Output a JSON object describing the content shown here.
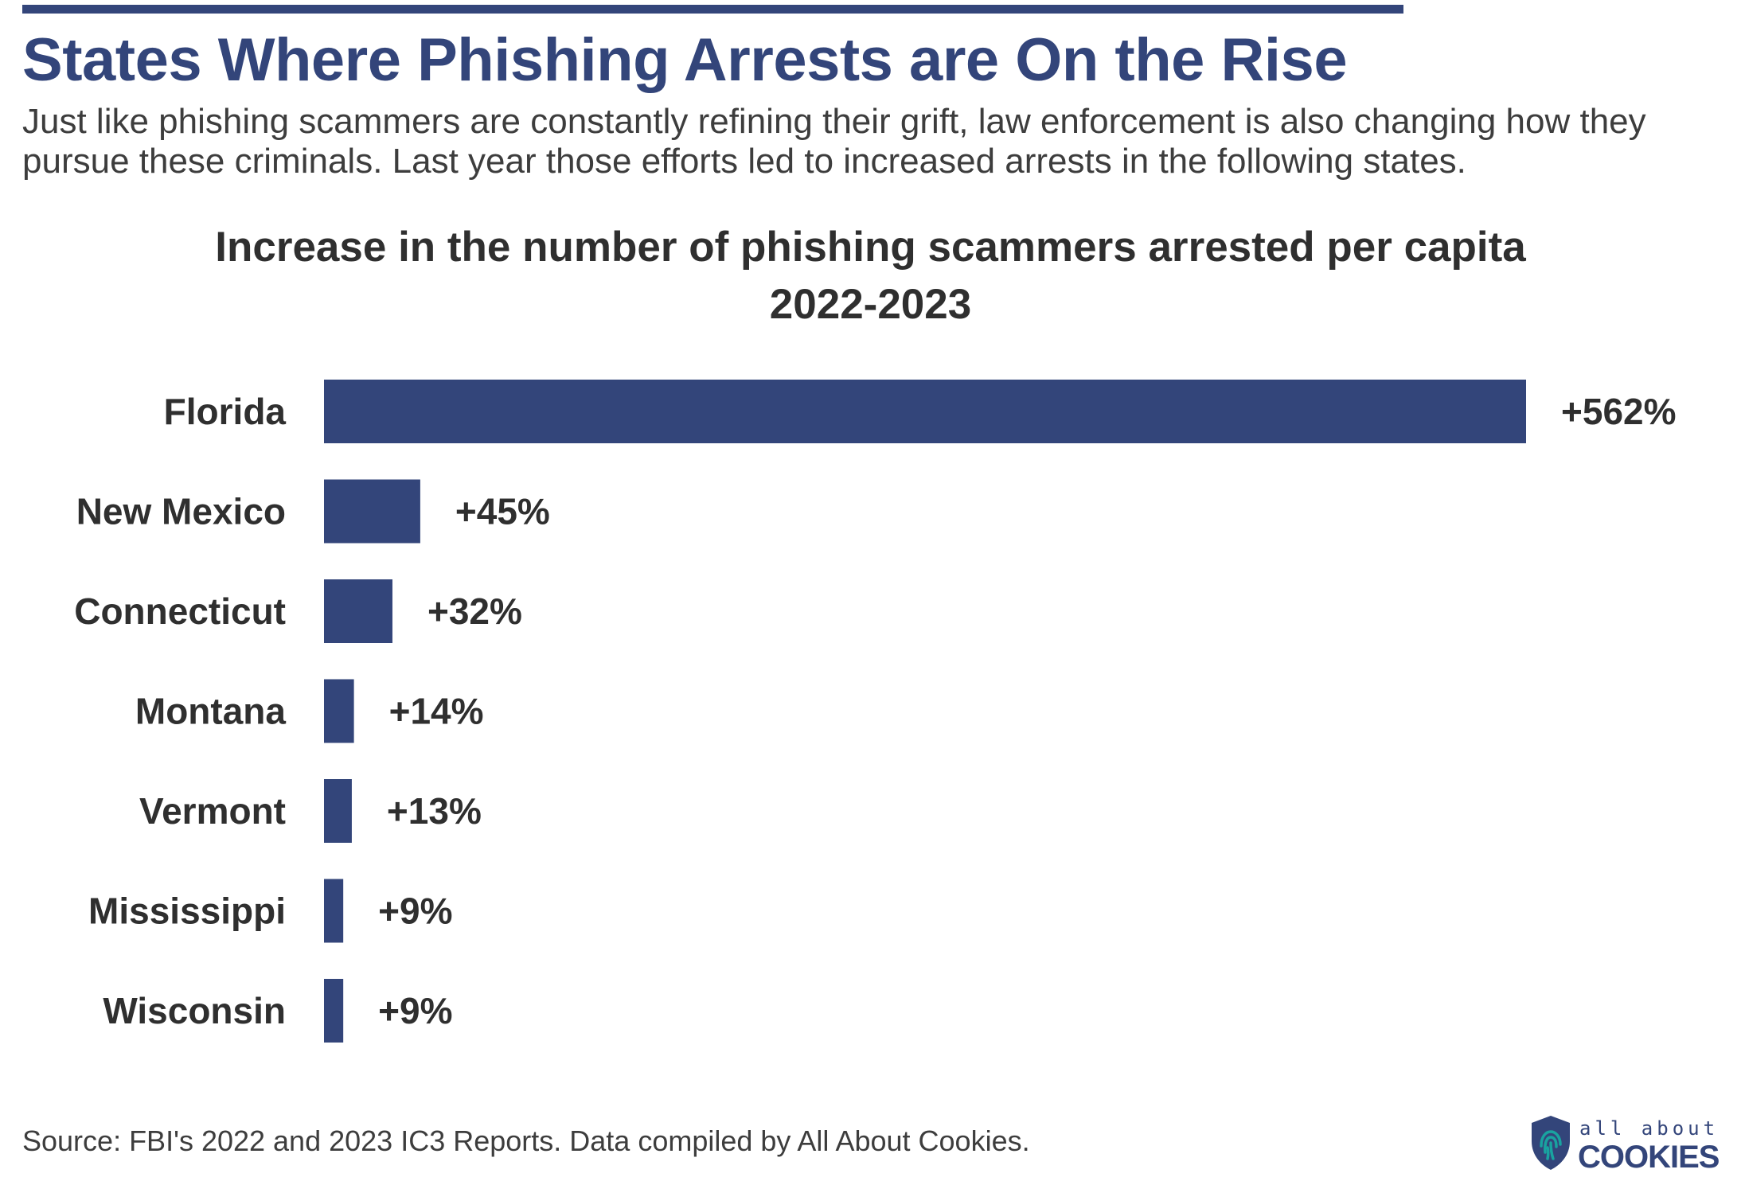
{
  "header": {
    "title": "States Where Phishing Arrests are On the Rise",
    "intro": "Just like phishing scammers are constantly refining their grift, law enforcement is also changing how they pursue these criminals. Last year those efforts led to increased arrests in the following states."
  },
  "chart_data": {
    "type": "bar",
    "orientation": "horizontal",
    "title": "Increase in the number of phishing scammers arrested per capita",
    "subtitle": "2022-2023",
    "xlabel": "",
    "ylabel": "",
    "grid": false,
    "legend": "none",
    "categories": [
      "Florida",
      "New Mexico",
      "Connecticut",
      "Montana",
      "Vermont",
      "Mississippi",
      "Wisconsin"
    ],
    "values": [
      562,
      45,
      32,
      14,
      13,
      9,
      9
    ],
    "value_labels": [
      "+562%",
      "+45%",
      "+32%",
      "+14%",
      "+13%",
      "+9%",
      "+9%"
    ],
    "unit": "%",
    "xlim": [
      0,
      562
    ],
    "bar_color": "#33457a"
  },
  "footer": {
    "source": "Source: FBI's 2022 and 2023 IC3 Reports. Data compiled by All About Cookies.",
    "logo_top": "all about",
    "logo_bottom": "COOKIES",
    "logo_icon": "shield-fingerprint-icon"
  },
  "colors": {
    "brand": "#33457a",
    "text": "#2f2f2f",
    "body_text": "#3d3d3d",
    "logo_accent": "#19a3a0"
  }
}
